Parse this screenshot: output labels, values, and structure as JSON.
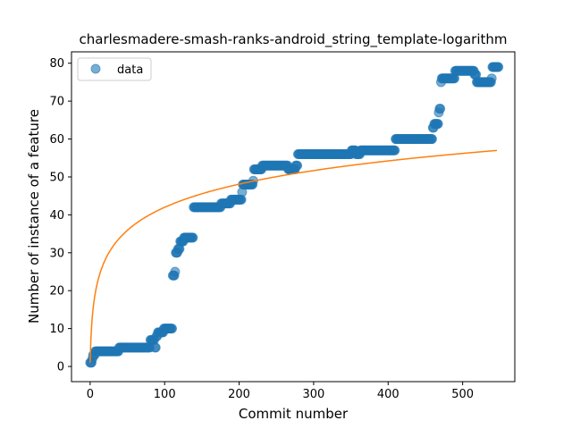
{
  "chart_data": {
    "type": "scatter",
    "title": "charlesmadere-smash-ranks-android_string_template-logarithm",
    "xlabel": "Commit number",
    "ylabel": "Number of instance of a feature",
    "xlim": [
      -25,
      570
    ],
    "ylim": [
      -4,
      83
    ],
    "xticks": [
      0,
      100,
      200,
      300,
      400,
      500
    ],
    "yticks": [
      0,
      10,
      20,
      30,
      40,
      50,
      60,
      70,
      80
    ],
    "legend": {
      "placement": "top-left",
      "entries": [
        "data"
      ]
    },
    "colors": {
      "data": "#1f77b4",
      "fit": "#ff7f0e"
    },
    "series": [
      {
        "name": "data",
        "kind": "scatter",
        "steps": [
          [
            0,
            1
          ],
          [
            2,
            1
          ],
          [
            3,
            2
          ],
          [
            4,
            3
          ],
          [
            6,
            3
          ],
          [
            7,
            4
          ],
          [
            38,
            4
          ],
          [
            39,
            5
          ],
          [
            80,
            5
          ],
          [
            81,
            7
          ],
          [
            86,
            7
          ],
          [
            87,
            5
          ],
          [
            89,
            8
          ],
          [
            91,
            9
          ],
          [
            98,
            9
          ],
          [
            99,
            10
          ],
          [
            110,
            10
          ],
          [
            111,
            24
          ],
          [
            114,
            25
          ],
          [
            115,
            30
          ],
          [
            118,
            31
          ],
          [
            121,
            33
          ],
          [
            124,
            33
          ],
          [
            126,
            34
          ],
          [
            138,
            34
          ],
          [
            139,
            42
          ],
          [
            175,
            42
          ],
          [
            176,
            43
          ],
          [
            188,
            43
          ],
          [
            189,
            44
          ],
          [
            203,
            44
          ],
          [
            204,
            46
          ],
          [
            205,
            48
          ],
          [
            218,
            48
          ],
          [
            219,
            49
          ],
          [
            220,
            52
          ],
          [
            230,
            52
          ],
          [
            231,
            53
          ],
          [
            265,
            53
          ],
          [
            266,
            52
          ],
          [
            275,
            52
          ],
          [
            276,
            53
          ],
          [
            279,
            56
          ],
          [
            350,
            56
          ],
          [
            351,
            57
          ],
          [
            356,
            57
          ],
          [
            357,
            56
          ],
          [
            362,
            56
          ],
          [
            363,
            57
          ],
          [
            409,
            57
          ],
          [
            410,
            60
          ],
          [
            458,
            60
          ],
          [
            460,
            63
          ],
          [
            462,
            64
          ],
          [
            467,
            64
          ],
          [
            468,
            67
          ],
          [
            469,
            68
          ],
          [
            471,
            75
          ],
          [
            472,
            76
          ],
          [
            489,
            76
          ],
          [
            490,
            78
          ],
          [
            515,
            78
          ],
          [
            516,
            77
          ],
          [
            518,
            77
          ],
          [
            519,
            75
          ],
          [
            538,
            75
          ],
          [
            539,
            76
          ],
          [
            540,
            79
          ],
          [
            548,
            79
          ]
        ]
      },
      {
        "name": "",
        "kind": "line",
        "model": "logarithmic",
        "coefficients": {
          "a": 1.0,
          "b": 8.88
        },
        "x_range": [
          0,
          546
        ]
      }
    ]
  }
}
